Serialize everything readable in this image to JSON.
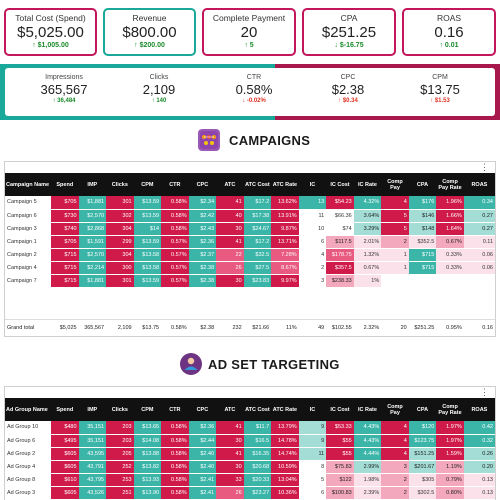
{
  "kpi_top": [
    {
      "label": "Total Cost (Spend)",
      "value": "$5,025.00",
      "delta": "↑ $1,005.00",
      "dir": "up"
    },
    {
      "label": "Revenue",
      "value": "$800.00",
      "delta": "↑ $200.00",
      "dir": "up"
    },
    {
      "label": "Complete Payment",
      "value": "20",
      "delta": "↑ 5",
      "dir": "up"
    },
    {
      "label": "CPA",
      "value": "$251.25",
      "delta": "↓ $-16.75",
      "dir": "up"
    },
    {
      "label": "ROAS",
      "value": "0.16",
      "delta": "↑ 0.01",
      "dir": "up"
    }
  ],
  "kpi_second": [
    {
      "label": "Impressions",
      "value": "365,567",
      "delta": "↑ 36,484",
      "dir": "up"
    },
    {
      "label": "Clicks",
      "value": "2,109",
      "delta": "↑ 140",
      "dir": "up"
    },
    {
      "label": "CTR",
      "value": "0.58%",
      "delta": "↓ -0.02%",
      "dir": "down"
    },
    {
      "label": "CPC",
      "value": "$2.38",
      "delta": "↑ $0.34",
      "dir": "down"
    },
    {
      "label": "CPM",
      "value": "$13.75",
      "delta": "↑ $1.53",
      "dir": "down"
    }
  ],
  "colors": {
    "accent_pink": "#c2185b",
    "accent_teal": "#1aa89a",
    "header_bg": "#111111"
  },
  "campaigns": {
    "title": "CAMPAIGNS",
    "icon": "network-icon",
    "menu": "⋮",
    "headers": [
      "Campaign Name",
      "Spend",
      "IMP",
      "Clicks",
      "CPM",
      "CTR",
      "CPC",
      "ATC",
      "ATC Cost",
      "ATC Rate",
      "IC",
      "IC Cost",
      "IC Rate",
      "Comp Pay",
      "CPA",
      "Comp Pay Rate",
      "ROAS"
    ],
    "rows": [
      {
        "cells": [
          "Campaign 5",
          "$705",
          "$1,881",
          "301",
          "$13.59",
          "0.58%",
          "$2.34",
          "41",
          "$17.2",
          "13.62%",
          "13",
          "$54.23",
          "4.32%",
          "4",
          "$176",
          "1.96%",
          "0.34"
        ],
        "cls": [
          "nm",
          "c-hi",
          "c-t",
          "c-hi",
          "c-t",
          "c-hi",
          "c-t",
          "c-hi",
          "c-t",
          "c-hi",
          "c-t",
          "c-hi",
          "c-t",
          "c-hi",
          "c-t",
          "c-hi",
          "c-t"
        ]
      },
      {
        "cells": [
          "Campaign 6",
          "$730",
          "$2,570",
          "302",
          "$13.59",
          "0.58%",
          "$2.42",
          "40",
          "$17.38",
          "13.91%",
          "11",
          "$66.36",
          "3.64%",
          "5",
          "$146",
          "1.66%",
          "0.27"
        ],
        "cls": [
          "nm",
          "c-hi",
          "c-t",
          "c-hi",
          "c-t",
          "c-hi",
          "c-t",
          "c-hi",
          "c-t",
          "c-hi",
          "c-w",
          "c-w",
          "c-tl",
          "c-hi",
          "c-tl",
          "c-hi",
          "c-tl"
        ]
      },
      {
        "cells": [
          "Campaign 3",
          "$740",
          "$2,868",
          "304",
          "$14",
          "0.58%",
          "$2.43",
          "30",
          "$24.67",
          "9.87%",
          "10",
          "$74",
          "3.29%",
          "5",
          "$148",
          "1.64%",
          "0.27"
        ],
        "cls": [
          "nm",
          "c-hi",
          "c-t",
          "c-hi",
          "c-t",
          "c-hi",
          "c-t",
          "c-hi",
          "c-t",
          "c-hi",
          "c-w",
          "c-w",
          "c-tl",
          "c-hi",
          "c-tl",
          "c-hi",
          "c-tl"
        ]
      },
      {
        "cells": [
          "Campaign 1",
          "$705",
          "$1,591",
          "299",
          "$13.59",
          "0.57%",
          "$2.36",
          "41",
          "$17.2",
          "13.71%",
          "6",
          "$117.5",
          "2.01%",
          "2",
          "$352.5",
          "0.67%",
          "0.11"
        ],
        "cls": [
          "nm",
          "c-hi",
          "c-t",
          "c-hi",
          "c-t",
          "c-hi",
          "c-t",
          "c-hi",
          "c-t",
          "c-hi",
          "c-w",
          "c-m2",
          "c-lo",
          "c-m2",
          "c-lo",
          "c-m2",
          "c-lo"
        ]
      },
      {
        "cells": [
          "Campaign 2",
          "$715",
          "$2,570",
          "304",
          "$13.58",
          "0.57%",
          "$2.37",
          "22",
          "$32.5",
          "7.28%",
          "4",
          "$178.75",
          "1.32%",
          "1",
          "$715",
          "0.33%",
          "0.06"
        ],
        "cls": [
          "nm",
          "c-hi",
          "c-t",
          "c-hi",
          "c-t",
          "c-hi",
          "c-t",
          "c-m1",
          "c-t",
          "c-m1",
          "c-w",
          "c-m1",
          "c-lo",
          "c-lo",
          "c-t",
          "c-lo",
          "c-lo"
        ]
      },
      {
        "cells": [
          "Campaign 4",
          "$715",
          "$2,214",
          "300",
          "$13.58",
          "0.57%",
          "$2.38",
          "26",
          "$27.5",
          "8.67%",
          "2",
          "$357.5",
          "0.67%",
          "1",
          "$715",
          "0.33%",
          "0.06"
        ],
        "cls": [
          "nm",
          "c-hi",
          "c-t",
          "c-hi",
          "c-t",
          "c-hi",
          "c-t",
          "c-m1",
          "c-t",
          "c-m1",
          "c-w",
          "c-hi",
          "c-lo",
          "c-lo",
          "c-t",
          "c-lo",
          "c-lo"
        ]
      },
      {
        "cells": [
          "Campaign 7",
          "$715",
          "$1,881",
          "301",
          "$13.59",
          "0.57%",
          "$2.38",
          "30",
          "$23.83",
          "9.97%",
          "3",
          "$238.33",
          "1%",
          "",
          "",
          "",
          ""
        ],
        "cls": [
          "nm",
          "c-hi",
          "c-t",
          "c-hi",
          "c-t",
          "c-hi",
          "c-t",
          "c-hi",
          "c-t",
          "c-hi",
          "c-w",
          "c-m2",
          "c-lo",
          "c-w",
          "c-w",
          "c-w",
          "c-w"
        ]
      }
    ],
    "total": [
      "Grand total",
      "$5,025",
      "365,567",
      "2,109",
      "$13.75",
      "0.58%",
      "$2.38",
      "232",
      "$21.66",
      "11%",
      "49",
      "$102.55",
      "2.32%",
      "20",
      "$251.25",
      "0.95%",
      "0.16"
    ]
  },
  "adsets": {
    "title": "AD SET TARGETING",
    "icon": "target-user-icon",
    "menu": "⋮",
    "headers": [
      "Ad Group Name",
      "Spend",
      "IMP",
      "Clicks",
      "CPM",
      "CTR",
      "CPC",
      "ATC",
      "ATC Cost",
      "ATC Rate",
      "IC",
      "IC Cost",
      "IC Rate",
      "Comp Pay",
      "CPA",
      "Comp Pay Rate",
      "ROAS"
    ],
    "rows": [
      {
        "cells": [
          "Ad Group 10",
          "$480",
          "35,151",
          "203",
          "$13.65",
          "0.58%",
          "$2.36",
          "41",
          "$11.7",
          "13.79%",
          "9",
          "$53.33",
          "4.43%",
          "4",
          "$120",
          "1.97%",
          "0.42"
        ],
        "cls": [
          "nm",
          "c-hi",
          "c-t",
          "c-hi",
          "c-t",
          "c-hi",
          "c-t",
          "c-hi",
          "c-t",
          "c-hi",
          "c-tl",
          "c-hi",
          "c-t",
          "c-hi",
          "c-t",
          "c-hi",
          "c-t"
        ]
      },
      {
        "cells": [
          "Ad Group 6",
          "$495",
          "35,151",
          "203",
          "$14.08",
          "0.58%",
          "$2.44",
          "30",
          "$16.5",
          "14.78%",
          "9",
          "$55",
          "4.43%",
          "4",
          "$123.75",
          "1.97%",
          "0.32"
        ],
        "cls": [
          "nm",
          "c-hi",
          "c-t",
          "c-hi",
          "c-t",
          "c-hi",
          "c-t",
          "c-hi",
          "c-t",
          "c-hi",
          "c-tl",
          "c-hi",
          "c-t",
          "c-hi",
          "c-t",
          "c-hi",
          "c-t"
        ]
      },
      {
        "cells": [
          "Ad Group 2",
          "$605",
          "43,595",
          "205",
          "$13.88",
          "0.58%",
          "$2.40",
          "41",
          "$16.35",
          "14.74%",
          "11",
          "$55",
          "4.44%",
          "4",
          "$151.25",
          "1.59%",
          "0.26"
        ],
        "cls": [
          "nm",
          "c-hi",
          "c-t",
          "c-hi",
          "c-t",
          "c-hi",
          "c-t",
          "c-hi",
          "c-t",
          "c-hi",
          "c-tl",
          "c-hi",
          "c-t",
          "c-hi",
          "c-tl",
          "c-hi",
          "c-tl"
        ]
      },
      {
        "cells": [
          "Ad Group 4",
          "$605",
          "43,791",
          "252",
          "$13.82",
          "0.58%",
          "$2.40",
          "30",
          "$20.68",
          "10.59%",
          "8",
          "$75.83",
          "2.99%",
          "3",
          "$201.67",
          "1.19%",
          "0.20"
        ],
        "cls": [
          "nm",
          "c-hi",
          "c-t",
          "c-hi",
          "c-t",
          "c-hi",
          "c-t",
          "c-hi",
          "c-t",
          "c-hi",
          "c-w",
          "c-m2",
          "c-tl",
          "c-m2",
          "c-tl",
          "c-m2",
          "c-tl"
        ]
      },
      {
        "cells": [
          "Ad Group 8",
          "$610",
          "43,795",
          "253",
          "$13.93",
          "0.58%",
          "$2.41",
          "33",
          "$20.33",
          "13.04%",
          "5",
          "$122",
          "1.98%",
          "2",
          "$305",
          "0.79%",
          "0.13"
        ],
        "cls": [
          "nm",
          "c-hi",
          "c-t",
          "c-hi",
          "c-t",
          "c-hi",
          "c-t",
          "c-hi",
          "c-t",
          "c-hi",
          "c-w",
          "c-m2",
          "c-lo",
          "c-m2",
          "c-lo",
          "c-m2",
          "c-lo"
        ]
      },
      {
        "cells": [
          "Ad Group 3",
          "$605",
          "43,526",
          "251",
          "$13.90",
          "0.58%",
          "$2.41",
          "26",
          "$23.27",
          "10.36%",
          "6",
          "$100.83",
          "2.39%",
          "2",
          "$302.5",
          "0.80%",
          "0.13"
        ],
        "cls": [
          "nm",
          "c-hi",
          "c-t",
          "c-hi",
          "c-t",
          "c-hi",
          "c-t",
          "c-m1",
          "c-t",
          "c-hi",
          "c-w",
          "c-m2",
          "c-lo",
          "c-m2",
          "c-lo",
          "c-m2",
          "c-lo"
        ]
      }
    ]
  }
}
